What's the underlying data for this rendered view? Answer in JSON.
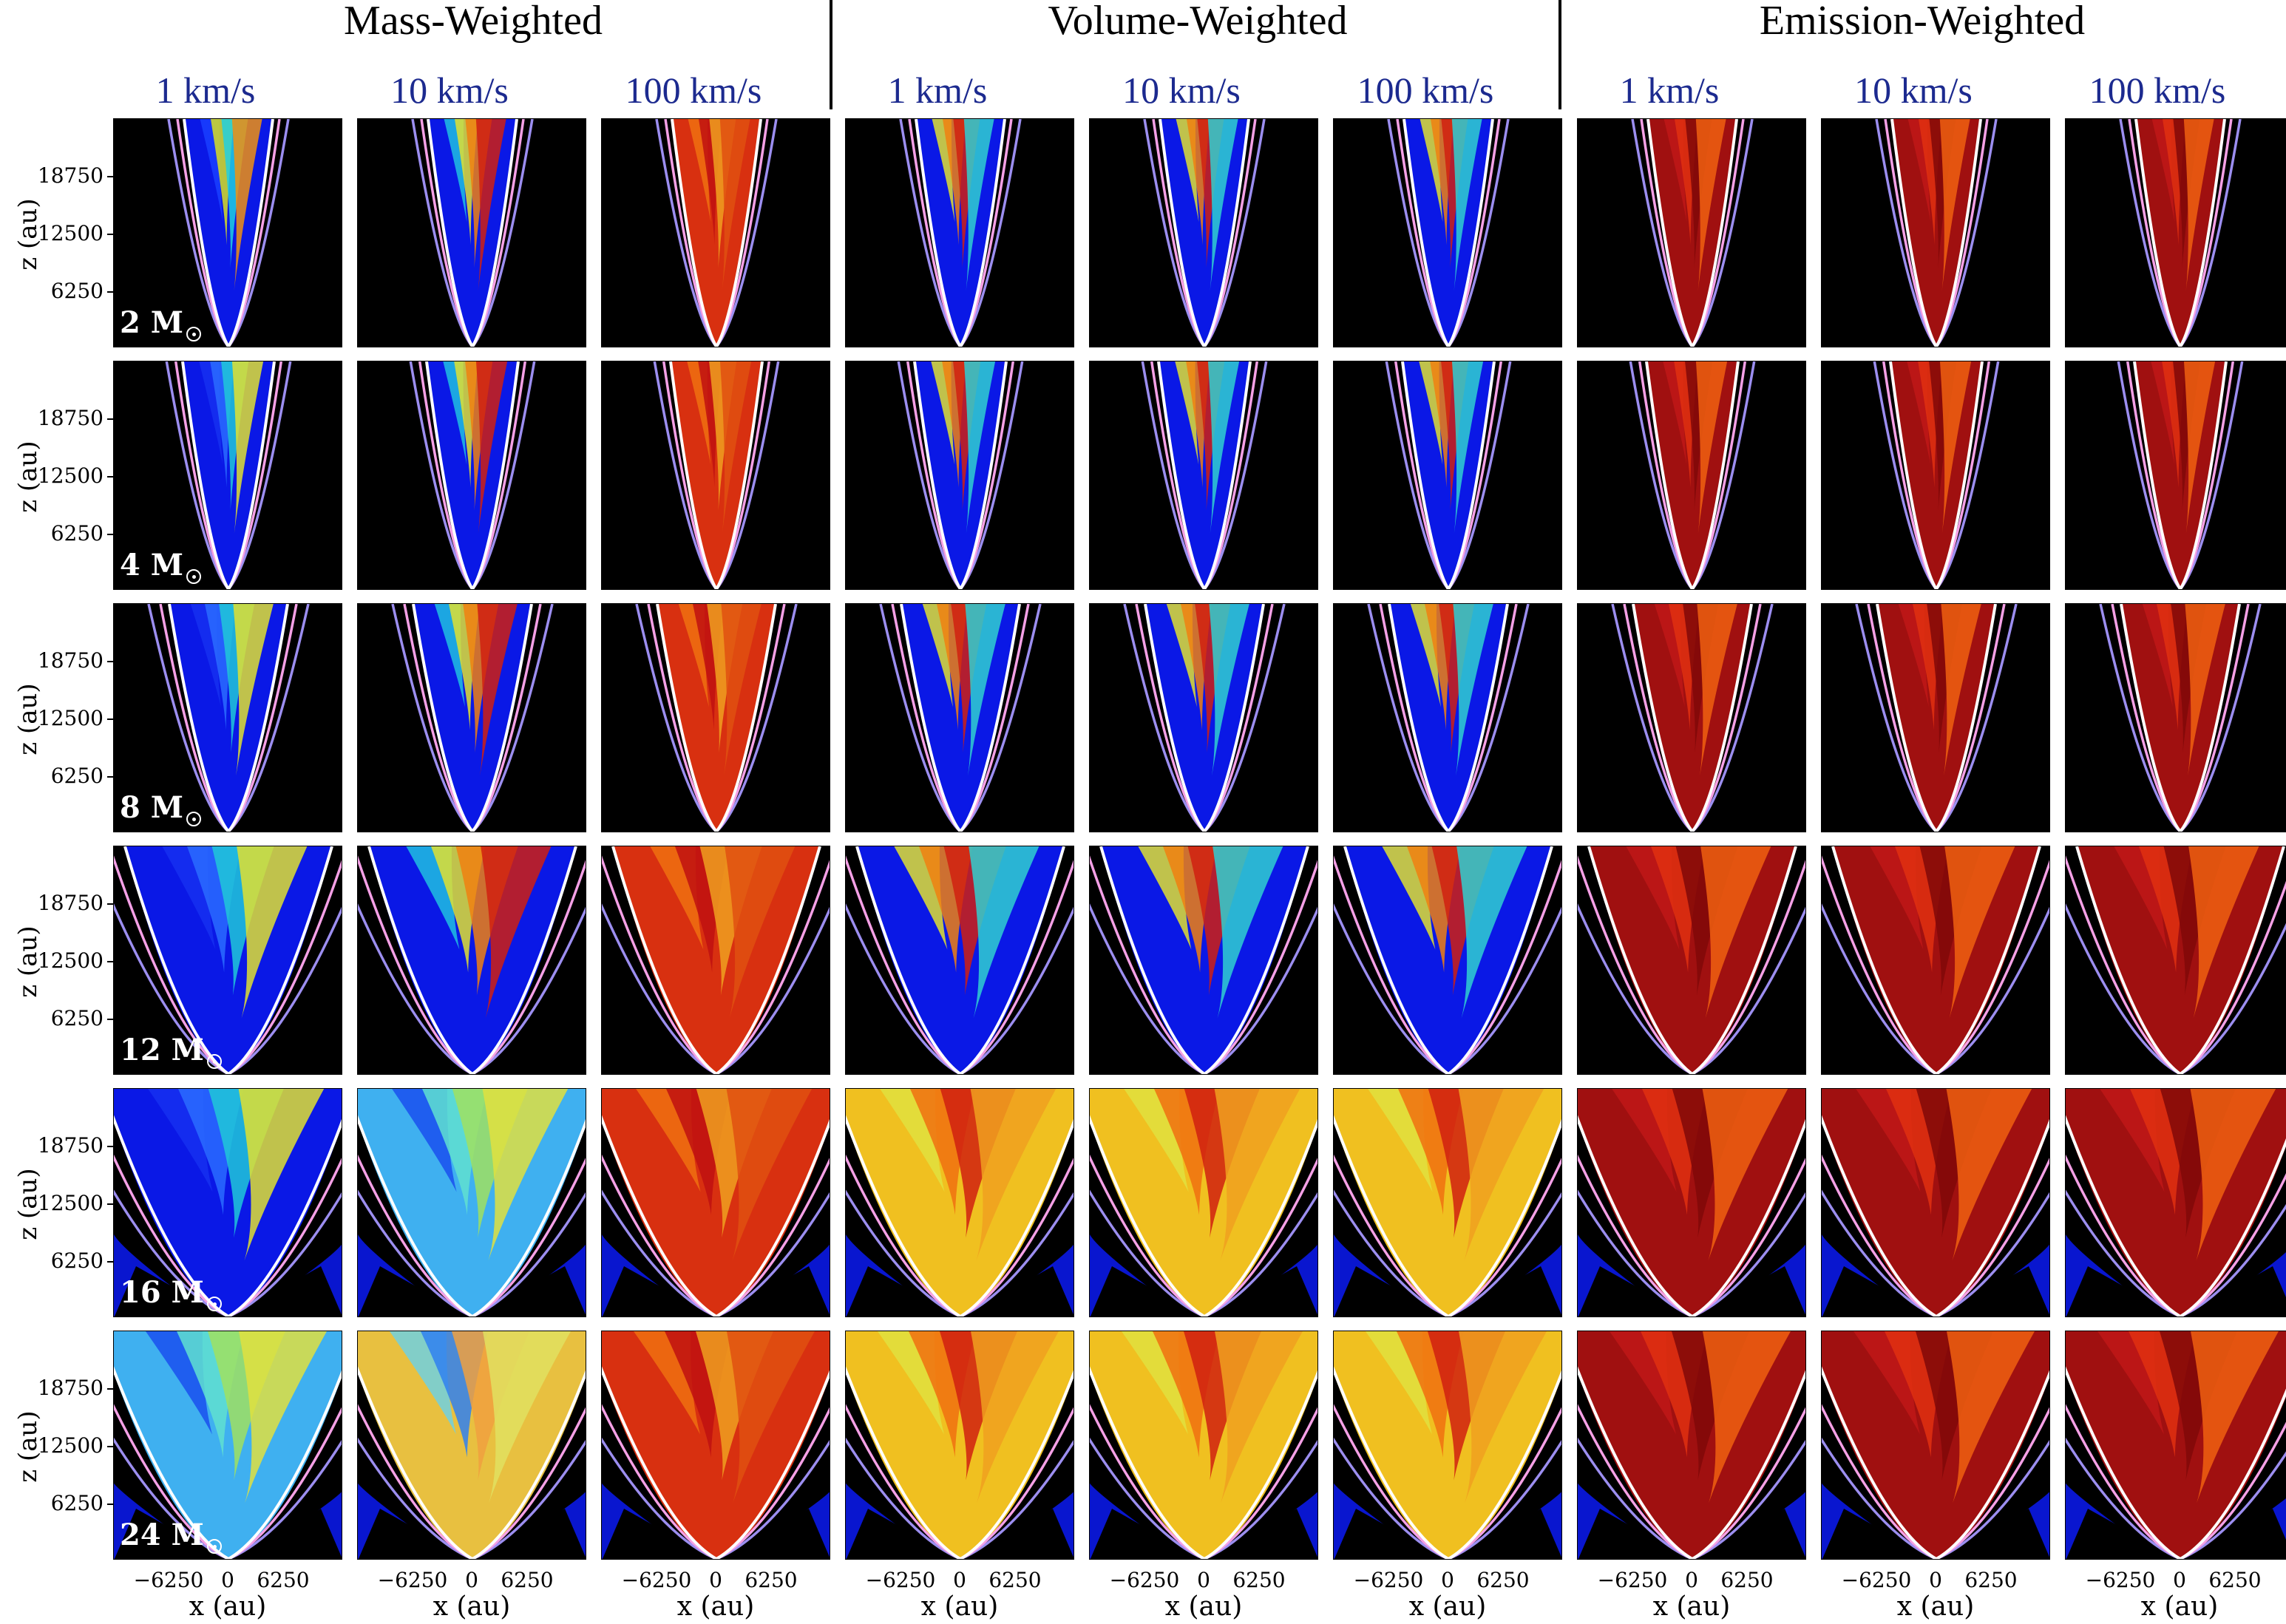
{
  "group_titles": [
    "Mass-Weighted",
    "Volume-Weighted",
    "Emission-Weighted"
  ],
  "column_labels": [
    "1 km/s",
    "10 km/s",
    "100 km/s",
    "1 km/s",
    "10 km/s",
    "100 km/s",
    "1 km/s",
    "10 km/s",
    "100 km/s"
  ],
  "row_labels": [
    "2 M",
    "4 M",
    "8 M",
    "12 M",
    "16 M",
    "24 M"
  ],
  "y_axis": {
    "label": "z (au)",
    "ticks": [
      "18750",
      "12500",
      "6250"
    ]
  },
  "x_axis": {
    "label": "x (au)",
    "ticks": [
      "−6250",
      "0",
      "6250"
    ]
  },
  "colors": {
    "background": "#000000",
    "low_velocity": "#0a18e6",
    "contour_white": "#ffffff",
    "contour_pink": "#f5a0e6",
    "contour_lavender": "#9c8ef0",
    "header_blue": "#1c2a8f"
  },
  "panel_style_codes": {
    "description_rows": "one row per stellar mass",
    "rows": [
      [
        "mass-blue-yellow",
        "mass-mixed",
        "mass-red",
        "vol-mixed",
        "vol-mixed",
        "vol-mixed",
        "emis-red",
        "emis-red",
        "emis-red"
      ],
      [
        "mass-blue",
        "mass-mixed",
        "mass-red",
        "vol-mixed",
        "vol-mixed",
        "vol-mixed",
        "emis-red",
        "emis-red",
        "emis-red"
      ],
      [
        "mass-blue",
        "mass-mixed",
        "mass-red",
        "vol-mixed",
        "vol-mixed",
        "vol-mixed",
        "emis-red",
        "emis-red",
        "emis-red"
      ],
      [
        "mass-blue",
        "mass-mixed",
        "mass-red",
        "vol-mixed",
        "vol-mixed",
        "vol-mixed",
        "emis-red",
        "emis-red",
        "emis-red"
      ],
      [
        "mass-blue",
        "mass-cyan",
        "mass-red",
        "vol-yellow",
        "vol-yellow",
        "vol-yellow",
        "emis-red",
        "emis-red",
        "emis-red"
      ],
      [
        "mass-cyan",
        "mass-yellow",
        "mass-red",
        "vol-yellow",
        "vol-yellow",
        "vol-yellow",
        "emis-red",
        "emis-red",
        "emis-red"
      ]
    ]
  }
}
